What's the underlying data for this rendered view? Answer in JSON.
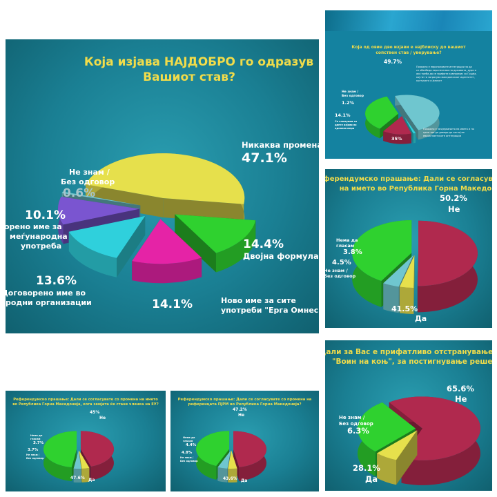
{
  "colors": {
    "yellow": "#e6e04c",
    "green": "#2fd12f",
    "magenta": "#e523a6",
    "cyan": "#2fd0dc",
    "purple": "#7a55d0",
    "maroon": "#b0294e",
    "lightblue": "#6fc6cf",
    "title": "#f1dc4a",
    "label": "#ffffff"
  },
  "main": {
    "title_line1": "Која изјава НАЈДОБРО го одразув",
    "title_line2": "Вашиот став?",
    "labels": {
      "s0_name": "Никаква промена",
      "s0_value": "47.1%",
      "s1_value": "14.4%",
      "s1_name": "Двојна формула",
      "s2_value": "14.1%",
      "s2_name1": "Ново име за сите",
      "s2_name2": "употреби \"Ерга Омнес\"",
      "s3_value": "13.6%",
      "s3_name1": "Договорено име во",
      "s3_name2": "родни организации",
      "s4_value": "10.1%",
      "s4_name1": "орено име за",
      "s4_name2": "меѓународна",
      "s4_name3": "употреба",
      "s5_name1": "Не знам /",
      "s5_name2": "Без одговор",
      "s5_value": "0.6%"
    }
  },
  "top_right": {
    "title_line1": "Која од овие две изјави е најблиску до вашиот",
    "title_line2": "сопствен став / уверување?",
    "labels": {
      "a_value": "49.7%",
      "a_text1": "Поважно е европоловите интеграции за да",
      "a_text2": "се обезбеди перспектива на државата, дури и",
      "a_text3": "ако треба да се прифати компромис со Грција,",
      "a_text4": "кој не го загрозува македонскиот идентитет,",
      "a_text5": "културата и јазикот",
      "b_name1": "Не знам /",
      "b_name2": "Без одговор",
      "b_value": "1.2%",
      "c_value": "14.1%",
      "c_text1": "Се сложувам со",
      "c_text2": "двете изјави во",
      "c_text3": "еднаква мера",
      "d_value": "35%",
      "d_text1": "Поважно е зачувувањето на името и по",
      "d_text2": "цена тоа да доведе до застој во",
      "d_text3": "евроатлантските интеграции"
    }
  },
  "mid_right": {
    "title_line1": "еферендумско прашање: Дали се согласуват",
    "title_line2": "на името во Република Горна Македо",
    "labels": {
      "ne_value": "50.2%",
      "ne_name": "Не",
      "nema_name1": "Нема да",
      "nema_name2": "гласам",
      "nema_value": "3.8%",
      "dk_value": "4.5%",
      "dk_name1": "Не знам /",
      "dk_name2": "Без одговор",
      "da_value": "41.5%",
      "da_name": "Да"
    }
  },
  "bottom_right": {
    "title_line1": "Дали за Вас е прифатливо отстранување на",
    "title_line2": "\"Воин на коњ\", за постигнување решение",
    "labels": {
      "ne_value": "65.6%",
      "ne_name": "Не",
      "dk_name1": "Не знам /",
      "dk_name2": "Без одговор",
      "dk_value": "6.3%",
      "da_value": "28.1%",
      "da_name": "Да"
    }
  },
  "bottom_left_1": {
    "title_line1": "Референдумско прашање: Дали се согласувате со промена на името",
    "title_line2": "во Република Горна Македонија, кога земјата ќе стане членка на ЕУ?",
    "labels": {
      "ne_value": "45%",
      "ne_name": "Не",
      "nema_name1": "Нема да",
      "nema_name2": "гласам",
      "nema_value": "3.7%",
      "dk_value": "3.7%",
      "dk_name1": "Не знам /",
      "dk_name2": "Без одговор",
      "da_value": "47.6%",
      "da_name": "Да"
    }
  },
  "bottom_left_2": {
    "title_line1": "Референдумско прашање: Дали се согласувате со промена на",
    "title_line2": "референцата ПЈРМ во Република Горна Македонија?",
    "labels": {
      "ne_value": "47.2%",
      "ne_name": "Не",
      "nema_name1": "Нема да",
      "nema_name2": "гласам",
      "nema_value": "4.4%",
      "dk_value": "4.8%",
      "dk_name1": "Не знам /",
      "dk_name2": "Без одговор",
      "da_value": "43.6%",
      "da_name": "Да"
    }
  },
  "chart_data": [
    {
      "type": "pie",
      "title": "Која изјава НАЈДОБРО го одразув Вашиот став?",
      "categories": [
        "Никаква промена",
        "Двојна формула",
        "Ново име за сите употреби \"Ерга Омнес\"",
        "Договорено име во родни организации",
        "орено име за меѓународна употреба",
        "Не знам / Без одговор"
      ],
      "values": [
        47.1,
        14.4,
        14.1,
        13.6,
        10.1,
        0.6
      ],
      "colors": [
        "#e6e04c",
        "#2fd12f",
        "#e523a6",
        "#2fd0dc",
        "#7a55d0",
        "#6fc6cf"
      ],
      "exploded": true
    },
    {
      "type": "pie",
      "title": "Која од овие две изјави е најблиску до вашиот сопствен став / уверување?",
      "values": [
        49.7,
        1.2,
        14.1,
        35
      ],
      "colors": [
        "#6fc6cf",
        "#2fd0dc",
        "#b0294e",
        "#2fd12f"
      ]
    },
    {
      "type": "pie",
      "title": "еферендумско прашање: Дали се согласуват на името во Република Горна Македо",
      "categories": [
        "Не",
        "Нема да гласам",
        "Не знам / Без одговор",
        "Да"
      ],
      "values": [
        50.2,
        3.8,
        4.5,
        41.5
      ],
      "colors": [
        "#b0294e",
        "#e6e04c",
        "#6fc6cf",
        "#2fd12f"
      ]
    },
    {
      "type": "pie",
      "title": "Дали за Вас е прифатливо отстранување на \"Воин на коњ\", за постигнување решение",
      "categories": [
        "Не",
        "Не знам / Без одговор",
        "Да"
      ],
      "values": [
        65.6,
        6.3,
        28.1
      ],
      "colors": [
        "#b0294e",
        "#e6e04c",
        "#2fd12f"
      ]
    },
    {
      "type": "pie",
      "title": "Референдумско прашање: Дали се согласувате со промена на името во Република Горна Македонија, кога земјата ќе стане членка на ЕУ?",
      "categories": [
        "Не",
        "Нема да гласам",
        "Не знам / Без одговор",
        "Да"
      ],
      "values": [
        45,
        3.7,
        3.7,
        47.6
      ],
      "colors": [
        "#b0294e",
        "#e6e04c",
        "#6fc6cf",
        "#2fd12f"
      ]
    },
    {
      "type": "pie",
      "title": "Референдумско прашање: Дали се согласувате со промена на референцата ПЈРМ во Република Горна Македонија?",
      "categories": [
        "Не",
        "Нема да гласам",
        "Не знам / Без одговор",
        "Да"
      ],
      "values": [
        47.2,
        4.4,
        4.8,
        43.6
      ],
      "colors": [
        "#b0294e",
        "#e6e04c",
        "#6fc6cf",
        "#2fd12f"
      ]
    }
  ]
}
